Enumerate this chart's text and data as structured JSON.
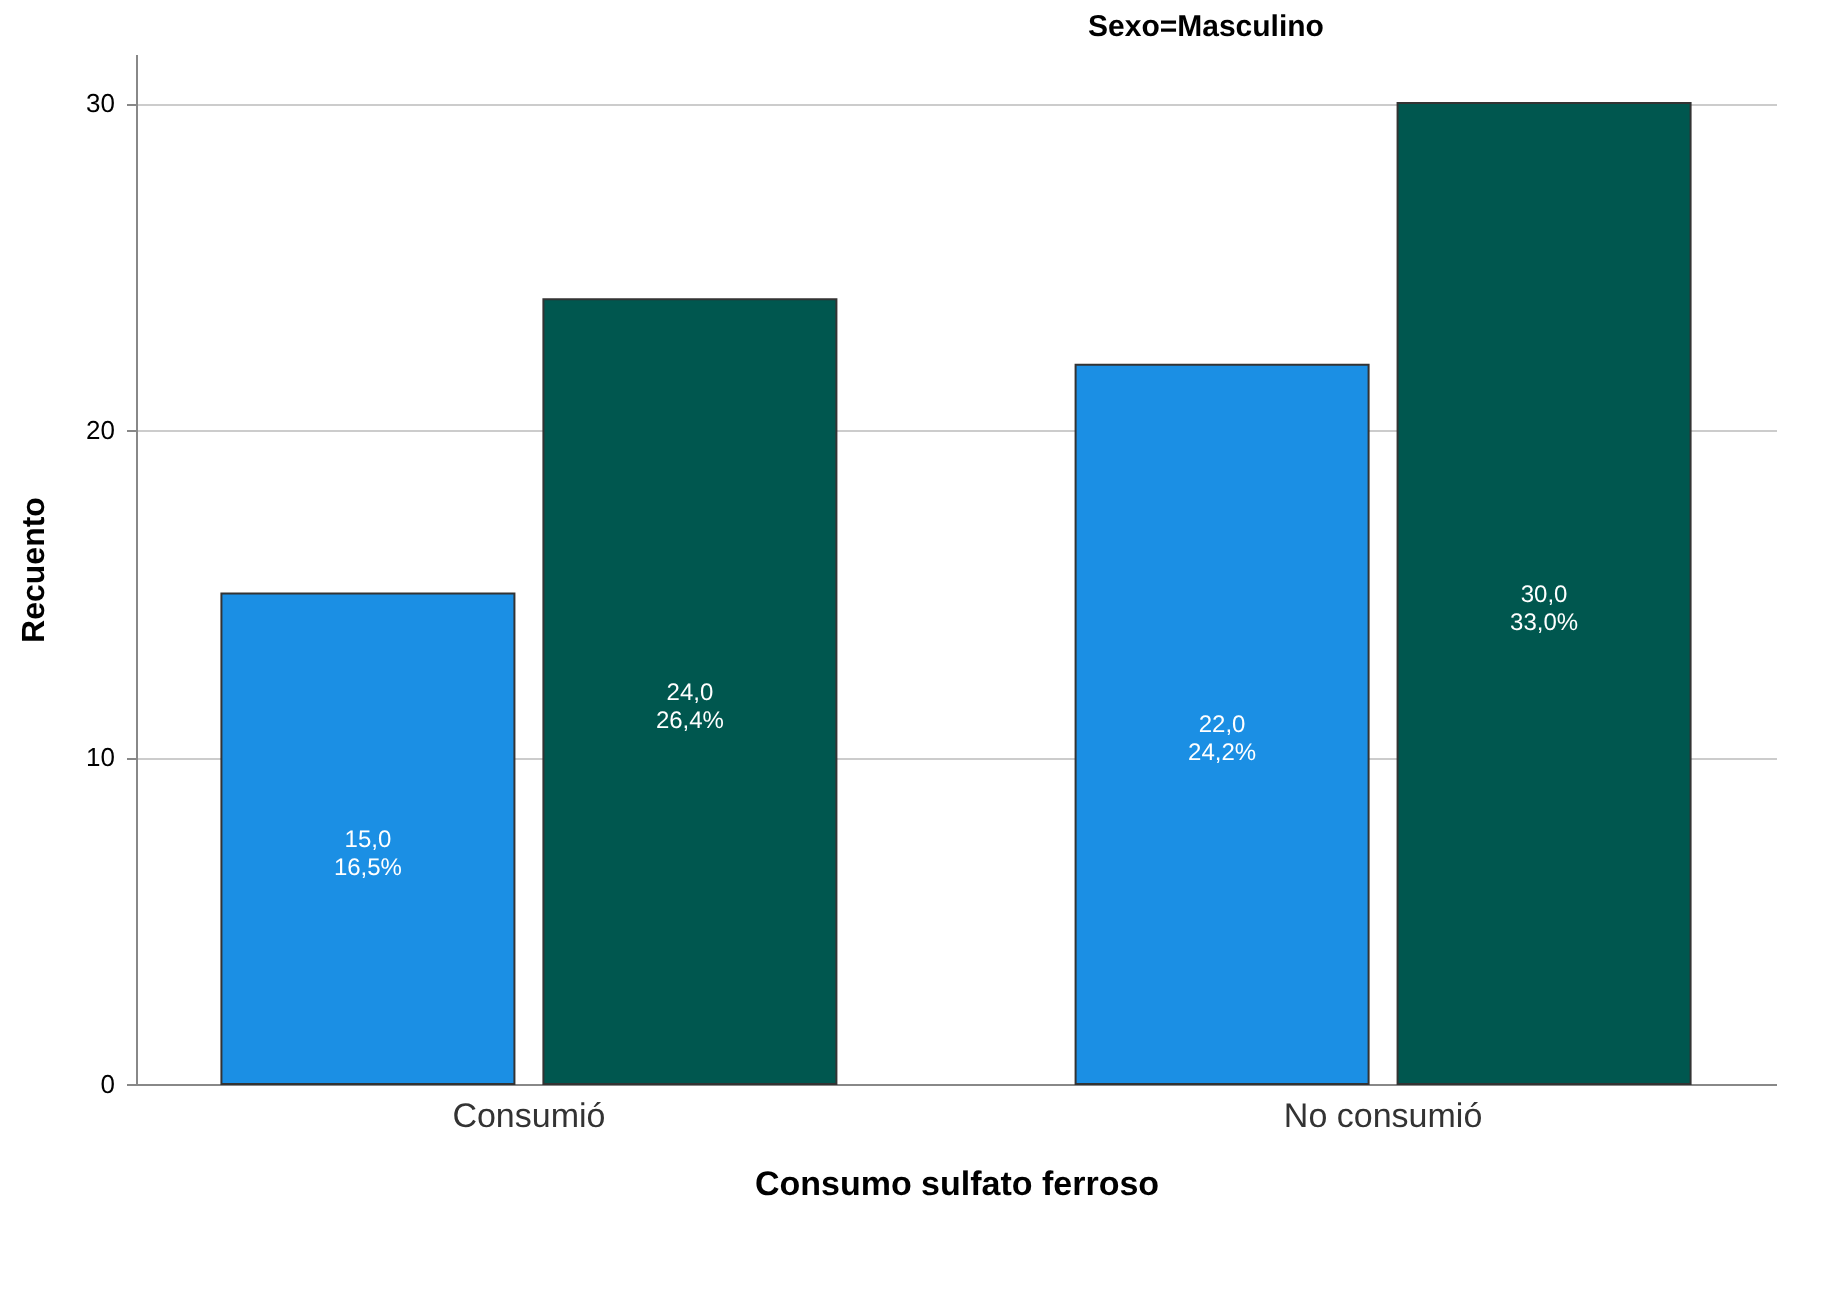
{
  "chart_data": {
    "type": "bar",
    "title": "Sexo=Masculino",
    "xlabel": "Consumo  sulfato ferroso",
    "ylabel": "Recuento",
    "categories": [
      "Consumió",
      "No consumió"
    ],
    "series": [
      {
        "color": "#1b8fe4",
        "values": [
          15,
          22
        ],
        "value_labels": [
          "15,0\n16,5%",
          "22,0\n24,2%"
        ]
      },
      {
        "color": "#00574f",
        "values": [
          24,
          30
        ],
        "value_labels": [
          "24,0\n26,4%",
          "30,0\n33,0%"
        ]
      }
    ],
    "ylim": [
      0,
      31.5
    ],
    "yticks": [
      0,
      10,
      20,
      30
    ],
    "grid": "y"
  }
}
